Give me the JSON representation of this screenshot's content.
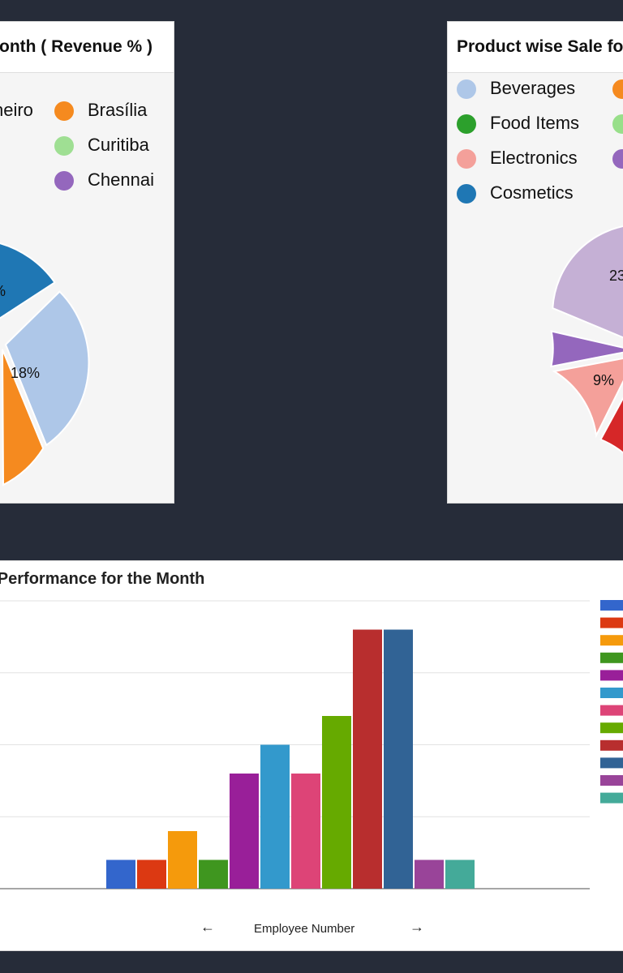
{
  "left_panel": {
    "title": "onth ( Revenue % )",
    "legend": [
      {
        "label": "neiro",
        "color": "#f58a1f"
      },
      {
        "label": "Brasília",
        "color": "#f58a1f"
      },
      {
        "label": "Curitiba",
        "color": "#9fdf93"
      },
      {
        "label": "Chennai",
        "color": "#9467bd"
      }
    ]
  },
  "right_panel": {
    "title": "Product wise Sale fo",
    "legend": [
      {
        "label": "Beverages",
        "color": "#aec7e8"
      },
      {
        "label": "",
        "color": "#f58a1f"
      },
      {
        "label": "Food Items",
        "color": "#2ca02c"
      },
      {
        "label": "",
        "color": "#98df8a"
      },
      {
        "label": "Electronics",
        "color": "#f4a09a"
      },
      {
        "label": "",
        "color": "#9467bd"
      },
      {
        "label": "Cosmetics",
        "color": "#1f77b4"
      }
    ]
  },
  "bar_panel": {
    "title": "se Performance for the Month",
    "x_axis_title": "Employee Number",
    "prev_arrow": "←",
    "next_arrow": "→"
  },
  "chart_data": [
    {
      "type": "pie",
      "title": "onth ( Revenue % )",
      "slices": [
        {
          "label": "",
          "value": 18,
          "color": "#1f77b4",
          "data_label": "%"
        },
        {
          "label": "",
          "value": 18,
          "color": "#aec7e8",
          "data_label": "18%"
        },
        {
          "label": "",
          "value": 5,
          "color": "#f58a1f",
          "data_label": ""
        }
      ]
    },
    {
      "type": "pie",
      "title": "Product wise Sale fo",
      "slices": [
        {
          "label": "",
          "value": 23,
          "color": "#c5b0d5",
          "data_label": "23"
        },
        {
          "label": "",
          "value": 3,
          "color": "#9467bd",
          "data_label": ""
        },
        {
          "label": "",
          "value": 9,
          "color": "#f4a09a",
          "data_label": "9%"
        },
        {
          "label": "",
          "value": 4,
          "color": "#d62728",
          "data_label": ""
        }
      ]
    },
    {
      "type": "bar",
      "title": "se Performance for the Month",
      "xlabel": "Employee Number",
      "ylim": [
        0,
        10
      ],
      "grid": true,
      "series": [
        {
          "value": 1,
          "color": "#3366cc"
        },
        {
          "value": 1,
          "color": "#dc3912"
        },
        {
          "value": 2,
          "color": "#f59a0c"
        },
        {
          "value": 1,
          "color": "#3f961f"
        },
        {
          "value": 4,
          "color": "#991f99"
        },
        {
          "value": 5,
          "color": "#3399cc"
        },
        {
          "value": 4,
          "color": "#dd4477"
        },
        {
          "value": 6,
          "color": "#66aa00"
        },
        {
          "value": 9,
          "color": "#b82e2e"
        },
        {
          "value": 9,
          "color": "#316395"
        },
        {
          "value": 1,
          "color": "#994499"
        },
        {
          "value": 1,
          "color": "#44aa99"
        }
      ]
    }
  ]
}
